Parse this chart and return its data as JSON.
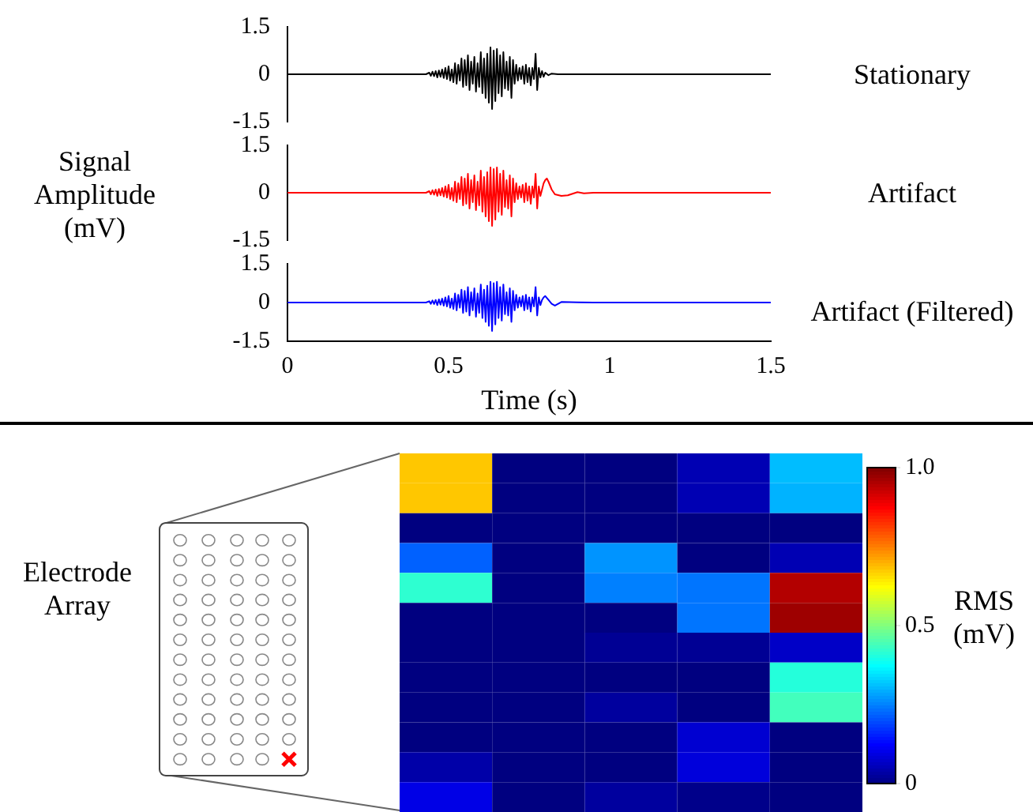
{
  "chart_data": [
    {
      "type": "line",
      "x": [
        0,
        0.43,
        0.44,
        0.445,
        0.45,
        0.455,
        0.46,
        0.465,
        0.47,
        0.475,
        0.48,
        0.485,
        0.49,
        0.495,
        0.5,
        0.505,
        0.51,
        0.515,
        0.52,
        0.525,
        0.53,
        0.535,
        0.54,
        0.545,
        0.55,
        0.555,
        0.56,
        0.565,
        0.57,
        0.575,
        0.58,
        0.585,
        0.59,
        0.595,
        0.6,
        0.605,
        0.61,
        0.615,
        0.62,
        0.625,
        0.63,
        0.635,
        0.64,
        0.645,
        0.65,
        0.655,
        0.66,
        0.665,
        0.67,
        0.675,
        0.68,
        0.685,
        0.69,
        0.695,
        0.7,
        0.705,
        0.71,
        0.715,
        0.72,
        0.725,
        0.73,
        0.735,
        0.74,
        0.745,
        0.75,
        0.755,
        0.76,
        0.765,
        0.77,
        0.775,
        0.78,
        0.785,
        0.79,
        0.795,
        0.8,
        0.81,
        0.82,
        0.84,
        1.5
      ],
      "series": [
        {
          "name": "Stationary",
          "color": "#000000",
          "values": [
            0,
            0,
            0.05,
            -0.05,
            0.08,
            -0.06,
            0.1,
            -0.1,
            0.12,
            -0.08,
            0.15,
            -0.12,
            0.2,
            -0.15,
            0.25,
            -0.2,
            0.15,
            -0.25,
            0.35,
            -0.3,
            0.3,
            -0.2,
            0.5,
            -0.4,
            0.45,
            -0.35,
            0.6,
            -0.5,
            0.4,
            -0.3,
            0.55,
            -0.55,
            0.35,
            -0.4,
            0.7,
            -0.6,
            0.5,
            -0.75,
            0.65,
            -0.9,
            0.85,
            -1.1,
            0.75,
            -0.85,
            0.8,
            -0.6,
            0.6,
            -0.7,
            0.7,
            -0.45,
            0.4,
            -0.5,
            0.55,
            -0.75,
            0.45,
            -0.3,
            0.3,
            -0.2,
            0.2,
            -0.15,
            0.25,
            -0.3,
            0.3,
            -0.25,
            0.2,
            -0.35,
            0.2,
            -0.15,
            0.65,
            -0.5,
            0.2,
            -0.1,
            0.1,
            -0.08,
            0.05,
            -0.03,
            0.02,
            0,
            0
          ]
        }
      ],
      "xlim": [
        0,
        1.5
      ],
      "ylim": [
        -1.5,
        1.5
      ],
      "yticks": [
        -1.5,
        0,
        1.5
      ],
      "tick_labels": "y"
    },
    {
      "type": "line",
      "x": [
        0,
        0.43,
        0.44,
        0.445,
        0.45,
        0.455,
        0.46,
        0.465,
        0.47,
        0.475,
        0.48,
        0.485,
        0.49,
        0.495,
        0.5,
        0.505,
        0.51,
        0.515,
        0.52,
        0.525,
        0.53,
        0.535,
        0.54,
        0.545,
        0.55,
        0.555,
        0.56,
        0.565,
        0.57,
        0.575,
        0.58,
        0.585,
        0.59,
        0.595,
        0.6,
        0.605,
        0.61,
        0.615,
        0.62,
        0.625,
        0.63,
        0.635,
        0.64,
        0.645,
        0.65,
        0.655,
        0.66,
        0.665,
        0.67,
        0.675,
        0.68,
        0.685,
        0.69,
        0.695,
        0.7,
        0.705,
        0.71,
        0.715,
        0.72,
        0.725,
        0.73,
        0.735,
        0.74,
        0.745,
        0.75,
        0.755,
        0.76,
        0.765,
        0.77,
        0.775,
        0.78,
        0.785,
        0.79,
        0.795,
        0.8,
        0.805,
        0.81,
        0.82,
        0.83,
        0.85,
        0.87,
        0.9,
        0.92,
        0.95,
        1.5
      ],
      "series": [
        {
          "name": "Artifact",
          "color": "#ff0000",
          "values": [
            0,
            0,
            0.05,
            -0.05,
            0.08,
            -0.06,
            0.1,
            -0.1,
            0.12,
            -0.08,
            0.15,
            -0.12,
            0.2,
            -0.15,
            0.25,
            -0.2,
            0.15,
            -0.25,
            0.35,
            -0.3,
            0.3,
            -0.2,
            0.5,
            -0.4,
            0.45,
            -0.35,
            0.6,
            -0.5,
            0.4,
            -0.3,
            0.55,
            -0.55,
            0.35,
            -0.4,
            0.7,
            -0.6,
            0.5,
            -0.75,
            0.65,
            -0.9,
            0.8,
            -1.05,
            0.75,
            -0.85,
            0.8,
            -0.6,
            0.6,
            -0.7,
            0.7,
            -0.45,
            0.4,
            -0.5,
            0.55,
            -0.75,
            0.45,
            -0.3,
            0.3,
            -0.2,
            0.2,
            -0.15,
            0.25,
            -0.3,
            0.3,
            -0.25,
            0.2,
            -0.35,
            0.2,
            -0.15,
            0.6,
            -0.5,
            0.2,
            -0.1,
            0.1,
            0.3,
            0.4,
            0.45,
            0.35,
            0.1,
            -0.05,
            -0.1,
            -0.08,
            0.02,
            -0.02,
            0,
            0
          ]
        }
      ],
      "xlim": [
        0,
        1.5
      ],
      "ylim": [
        -1.5,
        1.5
      ],
      "yticks": [
        -1.5,
        0,
        1.5
      ],
      "ylabel": "Signal Amplitude (mV)",
      "tick_labels": "y"
    },
    {
      "type": "line",
      "x": [
        0,
        0.43,
        0.44,
        0.445,
        0.45,
        0.455,
        0.46,
        0.465,
        0.47,
        0.475,
        0.48,
        0.485,
        0.49,
        0.495,
        0.5,
        0.505,
        0.51,
        0.515,
        0.52,
        0.525,
        0.53,
        0.535,
        0.54,
        0.545,
        0.55,
        0.555,
        0.56,
        0.565,
        0.57,
        0.575,
        0.58,
        0.585,
        0.59,
        0.595,
        0.6,
        0.605,
        0.61,
        0.615,
        0.62,
        0.625,
        0.63,
        0.635,
        0.64,
        0.645,
        0.65,
        0.655,
        0.66,
        0.665,
        0.67,
        0.675,
        0.68,
        0.685,
        0.69,
        0.695,
        0.7,
        0.705,
        0.71,
        0.715,
        0.72,
        0.725,
        0.73,
        0.735,
        0.74,
        0.745,
        0.75,
        0.755,
        0.76,
        0.765,
        0.77,
        0.775,
        0.78,
        0.785,
        0.79,
        0.795,
        0.8,
        0.81,
        0.82,
        0.83,
        0.85,
        0.9,
        0.95,
        1.5
      ],
      "series": [
        {
          "name": "Artifact (Filtered)",
          "color": "#0000ff",
          "values": [
            0,
            0,
            0.05,
            -0.05,
            0.08,
            -0.06,
            0.1,
            -0.1,
            0.12,
            -0.08,
            0.15,
            -0.12,
            0.2,
            -0.15,
            0.25,
            -0.2,
            0.15,
            -0.25,
            0.35,
            -0.3,
            0.3,
            -0.2,
            0.5,
            -0.4,
            0.45,
            -0.35,
            0.6,
            -0.5,
            0.4,
            -0.3,
            0.55,
            -0.55,
            0.35,
            -0.4,
            0.7,
            -0.6,
            0.5,
            -0.75,
            0.65,
            -0.9,
            0.8,
            -1.1,
            0.75,
            -0.85,
            0.8,
            -0.6,
            0.6,
            -0.7,
            0.7,
            -0.45,
            0.4,
            -0.5,
            0.55,
            -0.75,
            0.45,
            -0.3,
            0.3,
            -0.2,
            0.2,
            -0.15,
            0.25,
            -0.3,
            0.3,
            -0.25,
            0.2,
            -0.35,
            0.2,
            -0.15,
            0.6,
            -0.5,
            0.2,
            -0.1,
            0.1,
            0.2,
            0.25,
            0.1,
            -0.05,
            -0.12,
            0.02,
            0.01,
            0,
            0
          ]
        }
      ],
      "xlim": [
        0,
        1.5
      ],
      "ylim": [
        -1.5,
        1.5
      ],
      "xticks": [
        0,
        0.5,
        1,
        1.5
      ],
      "yticks": [
        -1.5,
        0,
        1.5
      ],
      "xlabel": "Time (s)"
    },
    {
      "type": "heatmap",
      "categories": [
        null,
        null,
        null,
        null,
        null
      ],
      "y_categories": [
        null,
        null,
        null,
        null,
        null,
        null,
        null,
        null,
        null,
        null,
        null,
        null
      ],
      "cells": [
        [
          0.68,
          0,
          0,
          0.05,
          0.31
        ],
        [
          0.68,
          0,
          0,
          0.05,
          0.3
        ],
        [
          0,
          0,
          0,
          0,
          0
        ],
        [
          0.22,
          0,
          0.27,
          0,
          0.05
        ],
        [
          0.42,
          0,
          0.25,
          0.24,
          0.95
        ],
        [
          0,
          0,
          0,
          0.24,
          0.97
        ],
        [
          0,
          0,
          0.02,
          0.02,
          0.07
        ],
        [
          0,
          0,
          0,
          0,
          0.41
        ],
        [
          0,
          0,
          0.03,
          0,
          0.44
        ],
        [
          0,
          0,
          0,
          0.08,
          0
        ],
        [
          0.04,
          0,
          0,
          0.09,
          0
        ],
        [
          0.1,
          0,
          0.03,
          0.01,
          0
        ]
      ],
      "clim": [
        0,
        1
      ],
      "cticks": [
        0,
        0.5,
        {
          "value": 1,
          "label": "1.0"
        }
      ],
      "clabel": "RMS (mV)",
      "annotations": [
        "Electrode Array"
      ],
      "tick_labels": false
    }
  ]
}
